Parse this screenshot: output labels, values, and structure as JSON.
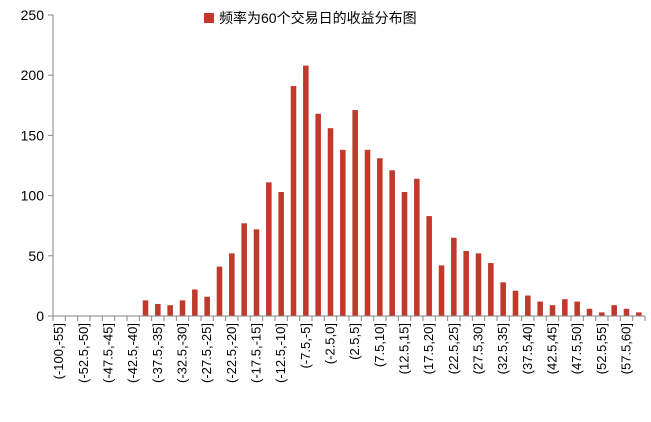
{
  "chart_data": {
    "type": "bar",
    "title": "",
    "xlabel": "",
    "ylabel": "",
    "ylim": [
      0,
      250
    ],
    "yticks": [
      0,
      50,
      100,
      150,
      200,
      250
    ],
    "grid": false,
    "legend_position": "top-center",
    "bar_color": "#C0392B",
    "categories": [
      "(-100,-55]",
      "(-55,-52.5]",
      "(-52.5,-50]",
      "(-50,-47.5]",
      "(-47.5,-45]",
      "(-45,-42.5]",
      "(-42.5,-40]",
      "(-40,-37.5]",
      "(-37.5,-35]",
      "(-35,-32.5]",
      "(-32.5,-30]",
      "(-30,-27.5]",
      "(-27.5,-25]",
      "(-25,-22.5]",
      "(-22.5,-20]",
      "(-20,-17.5]",
      "(-17.5,-15]",
      "(-15,-12.5]",
      "(-12.5,-10]",
      "(-10,-7.5]",
      "(-7.5,-5]",
      "(-5,-2.5]",
      "(-2.5,0]",
      "(0,2.5]",
      "(2.5,5]",
      "(5,7.5]",
      "(7.5,10]",
      "(10,12.5]",
      "(12.5,15]",
      "(15,17.5]",
      "(17.5,20]",
      "(20,22.5]",
      "(22.5,25]",
      "(25,27.5]",
      "(27.5,30]",
      "(30,32.5]",
      "(32.5,35]",
      "(35,37.5]",
      "(37.5,40]",
      "(40,42.5]",
      "(42.5,45]",
      "(45,47.5]",
      "(47.5,50]",
      "(50,52.5]",
      "(52.5,55]",
      "(55,57.5]",
      "(57.5,60]",
      "(60,62.5]"
    ],
    "series": [
      {
        "name": "频率为60个交易日的收益分布图",
        "values": [
          0,
          0,
          0,
          0,
          0,
          0,
          0,
          13,
          10,
          9,
          13,
          22,
          16,
          41,
          52,
          77,
          72,
          111,
          103,
          191,
          208,
          168,
          156,
          138,
          171,
          138,
          131,
          121,
          103,
          114,
          83,
          42,
          65,
          54,
          52,
          44,
          28,
          21,
          17,
          12,
          9,
          14,
          12,
          6,
          3,
          9,
          6,
          3
        ]
      }
    ]
  }
}
